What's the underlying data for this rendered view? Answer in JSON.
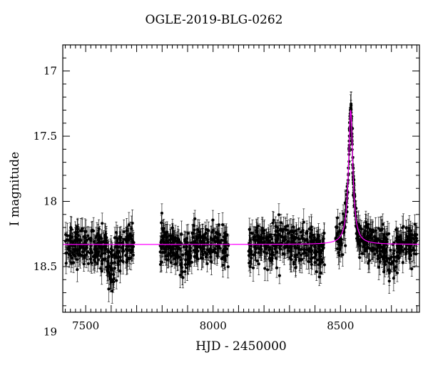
{
  "chart_data": {
    "type": "scatter",
    "title": "OGLE-2019-BLG-0262",
    "xlabel": "HJD - 2450000",
    "ylabel": "I magnitude",
    "xlim": [
      7410,
      8810
    ],
    "ylim": [
      18.85,
      16.8
    ],
    "y_inverted": true,
    "xticks": [
      7500,
      8000,
      8500
    ],
    "yticks": [
      17,
      17.5,
      18,
      18.5,
      19
    ],
    "ytick_labels": [
      "17",
      "17.5",
      "18",
      "18.5",
      "19"
    ],
    "grid": false,
    "legend": "none",
    "series": [
      {
        "kind": "data-with-errorbars",
        "color": "#000000",
        "segments": [
          {
            "x_start": 7420,
            "x_end": 7690,
            "baseline_mag": 18.35,
            "scatter": 0.12,
            "typical_error": 0.08
          },
          {
            "x_start": 7790,
            "x_end": 8060,
            "baseline_mag": 18.35,
            "scatter": 0.12,
            "typical_error": 0.08
          },
          {
            "x_start": 8140,
            "x_end": 8440,
            "baseline_mag": 18.35,
            "scatter": 0.12,
            "typical_error": 0.08
          },
          {
            "x_start": 8480,
            "x_end": 8800,
            "baseline_mag": 18.35,
            "scatter": 0.12,
            "typical_error": 0.08
          }
        ],
        "dips": [
          {
            "center": 7600,
            "width": 20,
            "depth_mag": 0.35
          },
          {
            "center": 7880,
            "width": 25,
            "depth_mag": 0.2
          },
          {
            "center": 8420,
            "width": 15,
            "depth_mag": 0.15
          },
          {
            "center": 8700,
            "width": 30,
            "depth_mag": 0.2
          }
        ],
        "peak": {
          "x": 8540,
          "mag": 17.3
        }
      },
      {
        "kind": "model-curve",
        "color": "#ff00ff",
        "baseline_mag": 18.33,
        "peak_x": 8540,
        "peak_mag": 17.3,
        "timescale": 8
      }
    ]
  }
}
